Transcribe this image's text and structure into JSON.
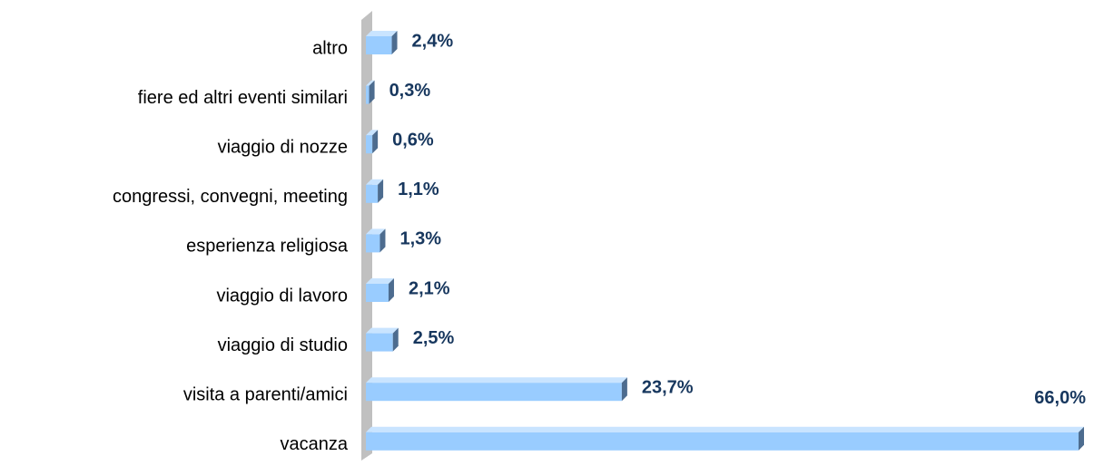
{
  "chart_data": {
    "type": "bar",
    "orientation": "horizontal",
    "categories": [
      "altro",
      "fiere ed altri eventi similari",
      "viaggio di nozze",
      "congressi, convegni, meeting",
      "esperienza religiosa",
      "viaggio di lavoro",
      "viaggio di studio",
      "visita a parenti/amici",
      "vacanza"
    ],
    "values": [
      2.4,
      0.3,
      0.6,
      1.1,
      1.3,
      2.1,
      2.5,
      23.7,
      66.0
    ],
    "value_labels": [
      "2,4%",
      "0,3%",
      "0,6%",
      "1,1%",
      "1,3%",
      "2,1%",
      "2,5%",
      "23,7%",
      "66,0%"
    ],
    "color": "#99ccff"
  }
}
